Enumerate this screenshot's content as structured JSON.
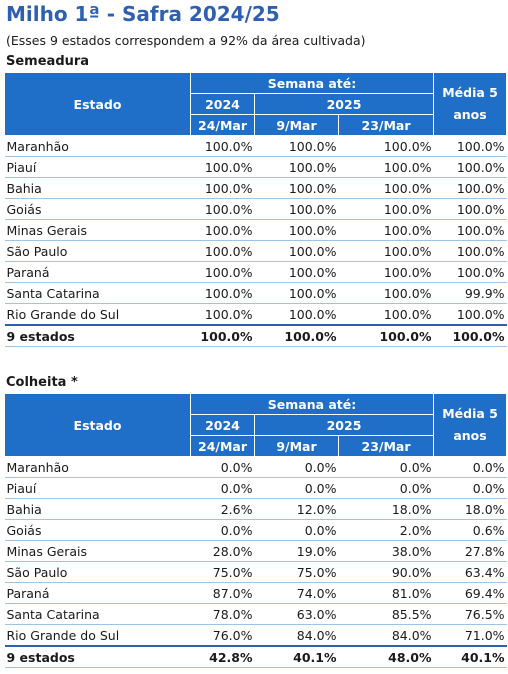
{
  "title": "Milho 1ª - Safra 2024/25",
  "subtitle": "(Esses 9 estados correspondem a 92% da área cultivada)",
  "headers": {
    "estado": "Estado",
    "semana": "Semana até:",
    "year_prev": "2024",
    "year_curr": "2025",
    "date_prev": "24/Mar",
    "date_w1": "9/Mar",
    "date_w2": "23/Mar",
    "media": "Média  5 anos"
  },
  "semeadura": {
    "label": "Semeadura",
    "rows": [
      {
        "estado": "Maranhão",
        "v2024": "100.0%",
        "w1": "100.0%",
        "w2": "100.0%",
        "media": "100.0%"
      },
      {
        "estado": "Piauí",
        "v2024": "100.0%",
        "w1": "100.0%",
        "w2": "100.0%",
        "media": "100.0%"
      },
      {
        "estado": "Bahia",
        "v2024": "100.0%",
        "w1": "100.0%",
        "w2": "100.0%",
        "media": "100.0%"
      },
      {
        "estado": "Goiás",
        "v2024": "100.0%",
        "w1": "100.0%",
        "w2": "100.0%",
        "media": "100.0%"
      },
      {
        "estado": "Minas Gerais",
        "v2024": "100.0%",
        "w1": "100.0%",
        "w2": "100.0%",
        "media": "100.0%"
      },
      {
        "estado": "São Paulo",
        "v2024": "100.0%",
        "w1": "100.0%",
        "w2": "100.0%",
        "media": "100.0%"
      },
      {
        "estado": "Paraná",
        "v2024": "100.0%",
        "w1": "100.0%",
        "w2": "100.0%",
        "media": "100.0%"
      },
      {
        "estado": "Santa Catarina",
        "v2024": "100.0%",
        "w1": "100.0%",
        "w2": "100.0%",
        "media": "99.9%"
      },
      {
        "estado": "Rio Grande do Sul",
        "v2024": "100.0%",
        "w1": "100.0%",
        "w2": "100.0%",
        "media": "100.0%"
      }
    ],
    "total": {
      "estado": "9 estados",
      "v2024": "100.0%",
      "w1": "100.0%",
      "w2": "100.0%",
      "media": "100.0%"
    }
  },
  "colheita": {
    "label": "Colheita *",
    "rows": [
      {
        "estado": "Maranhão",
        "v2024": "0.0%",
        "w1": "0.0%",
        "w2": "0.0%",
        "media": "0.0%"
      },
      {
        "estado": "Piauí",
        "v2024": "0.0%",
        "w1": "0.0%",
        "w2": "0.0%",
        "media": "0.0%"
      },
      {
        "estado": "Bahia",
        "v2024": "2.6%",
        "w1": "12.0%",
        "w2": "18.0%",
        "media": "18.0%"
      },
      {
        "estado": "Goiás",
        "v2024": "0.0%",
        "w1": "0.0%",
        "w2": "2.0%",
        "media": "0.6%"
      },
      {
        "estado": "Minas Gerais",
        "v2024": "28.0%",
        "w1": "19.0%",
        "w2": "38.0%",
        "media": "27.8%"
      },
      {
        "estado": "São Paulo",
        "v2024": "75.0%",
        "w1": "75.0%",
        "w2": "90.0%",
        "media": "63.4%"
      },
      {
        "estado": "Paraná",
        "v2024": "87.0%",
        "w1": "74.0%",
        "w2": "81.0%",
        "media": "69.4%"
      },
      {
        "estado": "Santa Catarina",
        "v2024": "78.0%",
        "w1": "63.0%",
        "w2": "85.5%",
        "media": "76.5%"
      },
      {
        "estado": "Rio Grande do Sul",
        "v2024": "76.0%",
        "w1": "84.0%",
        "w2": "84.0%",
        "media": "71.0%"
      }
    ],
    "total": {
      "estado": "9 estados",
      "v2024": "42.8%",
      "w1": "40.1%",
      "w2": "48.0%",
      "media": "40.1%"
    }
  }
}
